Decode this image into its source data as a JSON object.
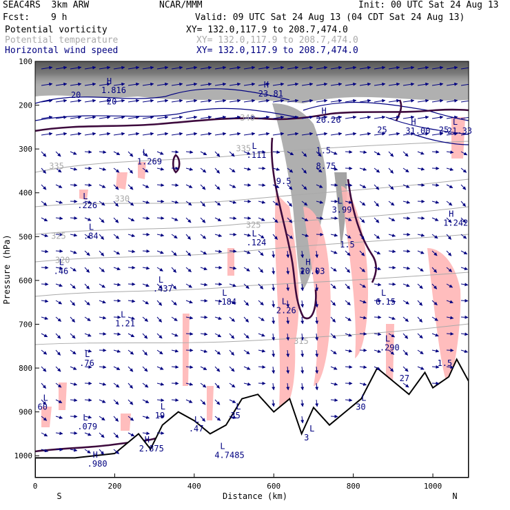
{
  "header": {
    "model": "SEAC4RS  3km ARW",
    "org": "NCAR/MMM",
    "init": "Init: 00 UTC Sat 24 Aug 13",
    "fcst_label": "Fcst:",
    "fcst_value": "9 h",
    "valid": "Valid: 09 UTC Sat 24 Aug 13 (04 CDT Sat 24 Aug 13)"
  },
  "fields": [
    {
      "name": "Potential vorticity",
      "xy": "XY= 132.0,117.9 to 208.7,474.0",
      "color": "#000000"
    },
    {
      "name": "Potential temperature",
      "xy": "XY= 132.0,117.9 to 208.7,474.0",
      "color": "#a9a9a9"
    },
    {
      "name": "Horizontal wind speed",
      "xy": "XY= 132.0,117.9 to 208.7,474.0",
      "color": "#000080"
    }
  ],
  "chart_data": {
    "type": "cross-section",
    "xlabel": "Distance (km)",
    "ylabel": "Pressure (hPa)",
    "xlim": [
      0,
      1090
    ],
    "ylim": [
      1050,
      100
    ],
    "x_ticks": [
      0,
      200,
      400,
      600,
      800,
      1000
    ],
    "y_ticks": [
      100,
      200,
      300,
      400,
      500,
      600,
      700,
      800,
      900,
      1000
    ],
    "x_end_labels": {
      "left": "S",
      "right": "N"
    },
    "terrain": {
      "x": [
        0,
        100,
        200,
        260,
        290,
        320,
        360,
        400,
        440,
        480,
        520,
        560,
        600,
        640,
        670,
        700,
        740,
        780,
        820,
        860,
        900,
        940,
        980,
        1000,
        1040,
        1060,
        1090
      ],
      "p": [
        1005,
        1005,
        995,
        950,
        985,
        930,
        900,
        920,
        950,
        930,
        870,
        860,
        900,
        870,
        950,
        890,
        930,
        900,
        870,
        800,
        830,
        860,
        810,
        845,
        820,
        780,
        830
      ]
    },
    "theta_labels": [
      {
        "v": "335",
        "x": 35,
        "p": 345
      },
      {
        "v": "330",
        "x": 200,
        "p": 420
      },
      {
        "v": "325",
        "x": 40,
        "p": 505
      },
      {
        "v": "320",
        "x": 50,
        "p": 560
      },
      {
        "v": "340",
        "x": 515,
        "p": 235
      },
      {
        "v": "335",
        "x": 505,
        "p": 305
      },
      {
        "v": "325",
        "x": 530,
        "p": 480
      },
      {
        "v": "315",
        "x": 650,
        "p": 745
      }
    ],
    "wind_labels": [
      {
        "v": "20",
        "x": 90,
        "p": 183
      },
      {
        "v": "20",
        "x": 180,
        "p": 198
      },
      {
        "v": "25",
        "x": 860,
        "p": 263
      },
      {
        "v": "25",
        "x": 1015,
        "p": 263
      }
    ],
    "extrema": [
      {
        "t": "H",
        "v": "1.816",
        "x": 180,
        "p": 172
      },
      {
        "t": "H",
        "v": "23.81",
        "x": 575,
        "p": 180
      },
      {
        "t": "H",
        "v": "26.26",
        "x": 720,
        "p": 240
      },
      {
        "t": "H",
        "v": "31.00",
        "x": 945,
        "p": 265
      },
      {
        "t": "L",
        "v": "21.33",
        "x": 1050,
        "p": 265
      },
      {
        "t": "L",
        "v": "1.269",
        "x": 270,
        "p": 335
      },
      {
        "t": "L",
        "v": ".111",
        "x": 545,
        "p": 320
      },
      {
        "t": "",
        "v": "1.5",
        "x": 720,
        "p": 310
      },
      {
        "t": "",
        "v": "8.75",
        "x": 720,
        "p": 345
      },
      {
        "t": "",
        "v": "9.5",
        "x": 620,
        "p": 380
      },
      {
        "t": "L",
        "v": ".226",
        "x": 120,
        "p": 435
      },
      {
        "t": "L",
        "v": "3.99",
        "x": 760,
        "p": 445
      },
      {
        "t": "H",
        "v": "1.242",
        "x": 1040,
        "p": 475
      },
      {
        "t": "L",
        "v": ".84",
        "x": 135,
        "p": 505
      },
      {
        "t": "L",
        "v": ".124",
        "x": 545,
        "p": 520
      },
      {
        "t": "",
        "v": "1.5",
        "x": 780,
        "p": 525
      },
      {
        "t": "L",
        "v": ".46",
        "x": 60,
        "p": 585
      },
      {
        "t": "H",
        "v": "20.03",
        "x": 680,
        "p": 585
      },
      {
        "t": "L",
        "v": ".437",
        "x": 310,
        "p": 625
      },
      {
        "t": "L",
        "v": ".184",
        "x": 470,
        "p": 655
      },
      {
        "t": "L",
        "v": "2.26",
        "x": 620,
        "p": 675
      },
      {
        "t": "L",
        "v": "6.15",
        "x": 870,
        "p": 655
      },
      {
        "t": "L",
        "v": "1.21",
        "x": 215,
        "p": 705
      },
      {
        "t": "L",
        "v": ".290",
        "x": 880,
        "p": 760
      },
      {
        "t": "L",
        "v": ".76",
        "x": 125,
        "p": 795
      },
      {
        "t": "",
        "v": "1.5",
        "x": 1025,
        "p": 795
      },
      {
        "t": "",
        "v": "27",
        "x": 930,
        "p": 830
      },
      {
        "t": "L",
        "v": "60",
        "x": 20,
        "p": 895
      },
      {
        "t": "L",
        "v": ".079",
        "x": 120,
        "p": 940
      },
      {
        "t": "L",
        "v": "19",
        "x": 315,
        "p": 915
      },
      {
        "t": "L",
        "v": ".47",
        "x": 400,
        "p": 945
      },
      {
        "t": "L",
        "v": "35",
        "x": 505,
        "p": 915
      },
      {
        "t": "L",
        "v": "30",
        "x": 820,
        "p": 895
      },
      {
        "t": "L",
        "v": "3",
        "x": 690,
        "p": 965
      },
      {
        "t": "H",
        "v": "2.875",
        "x": 275,
        "p": 990
      },
      {
        "t": "H",
        "v": ".980",
        "x": 145,
        "p": 1025
      },
      {
        "t": "L",
        "v": "4.7485",
        "x": 465,
        "p": 1005
      }
    ]
  }
}
